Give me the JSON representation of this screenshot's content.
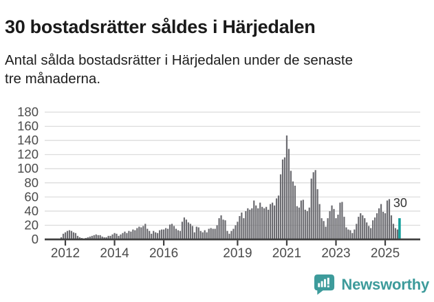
{
  "header": {
    "title": "30 bostadsrätter såldes i Härjedalen",
    "subtitle_line1": "Antal sålda bostadsrätter i Härjedalen under de senaste",
    "subtitle_line2": "tre månaderna."
  },
  "colors": {
    "bar_gray": "#6b6b70",
    "highlight_teal": "#14a09c",
    "brand_teal": "#3d9b9b",
    "grid": "#d9d9d9",
    "axis": "#3f3f3f",
    "tick_label": "#4b4b4b",
    "annotation": "#333333"
  },
  "chart_data": {
    "type": "bar",
    "title": "30 bostadsrätter såldes i Härjedalen",
    "subtitle": "Antal sålda bostadsrätter i Härjedalen under de senaste tre månaderna.",
    "freq": "monthly",
    "start_month": "2011-11",
    "end_month": "2025-08",
    "ylim": [
      0,
      180
    ],
    "y_ticks": [
      0,
      20,
      40,
      60,
      80,
      100,
      120,
      140,
      160,
      180
    ],
    "x_tick_labels": [
      "2012",
      "2014",
      "2016",
      "2019",
      "2021",
      "2023",
      "2025"
    ],
    "grid": "horizontal",
    "legend": "none",
    "values": [
      3,
      8,
      10,
      12,
      13,
      12,
      10,
      9,
      5,
      3,
      2,
      1,
      2,
      3,
      4,
      5,
      6,
      7,
      6,
      6,
      4,
      3,
      3,
      5,
      5,
      7,
      9,
      8,
      5,
      7,
      9,
      11,
      9,
      12,
      11,
      14,
      13,
      16,
      18,
      17,
      19,
      22,
      15,
      12,
      8,
      12,
      10,
      9,
      13,
      14,
      14,
      16,
      15,
      21,
      22,
      19,
      15,
      13,
      12,
      25,
      31,
      28,
      24,
      22,
      19,
      10,
      18,
      17,
      12,
      10,
      13,
      10,
      15,
      16,
      15,
      15,
      20,
      30,
      34,
      28,
      27,
      12,
      8,
      12,
      15,
      20,
      25,
      33,
      38,
      30,
      40,
      44,
      42,
      44,
      55,
      48,
      44,
      52,
      46,
      44,
      46,
      42,
      50,
      52,
      48,
      58,
      62,
      92,
      113,
      116,
      147,
      128,
      97,
      82,
      76,
      47,
      45,
      55,
      56,
      42,
      40,
      45,
      86,
      95,
      98,
      71,
      50,
      30,
      26,
      18,
      30,
      40,
      48,
      43,
      30,
      35,
      52,
      53,
      32,
      17,
      14,
      13,
      9,
      14,
      22,
      32,
      37,
      34,
      30,
      24,
      19,
      16,
      27,
      31,
      37,
      44,
      50,
      39,
      37,
      55,
      57,
      34,
      22,
      16,
      14,
      30
    ],
    "highlight": {
      "position": "last-bar",
      "value": 30,
      "label": "30"
    }
  },
  "footer": {
    "brand": "Newsworthy"
  }
}
